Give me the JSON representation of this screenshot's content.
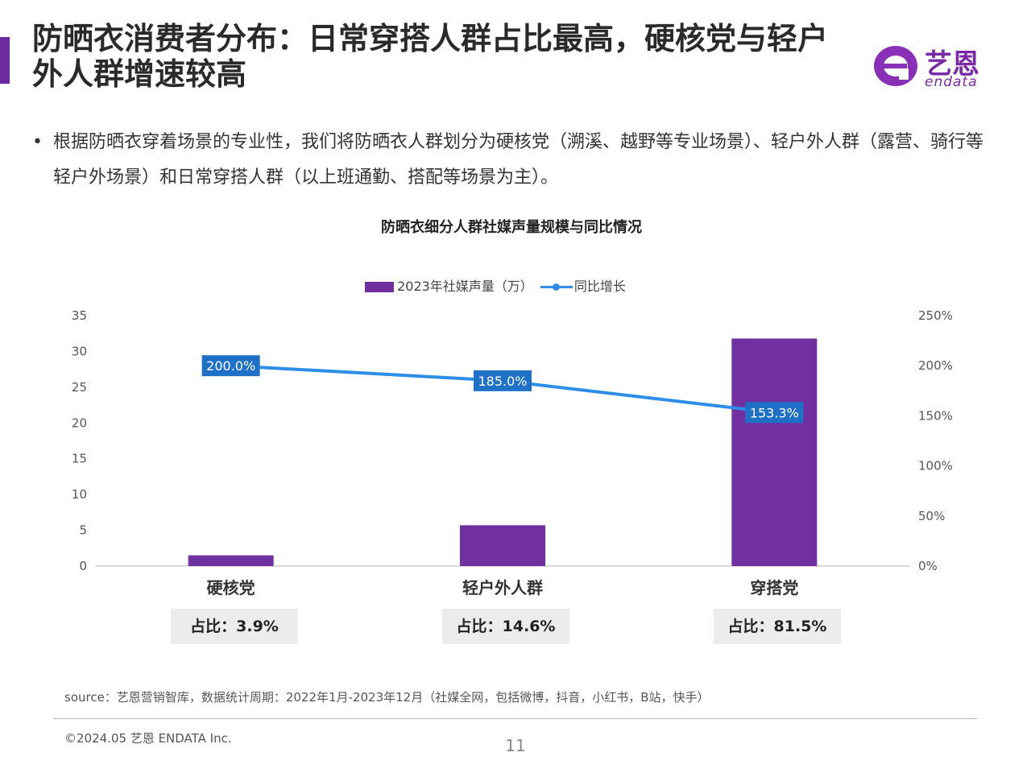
{
  "header": {
    "title": "防晒衣消费者分布：日常穿搭人群占比最高，硬核党与轻户外人群增速较高",
    "logo_cn": "艺恩",
    "logo_en": "endata",
    "accent_color": "#6b2aa0"
  },
  "body": {
    "bullet_symbol": "•",
    "bullet_text": "根据防晒衣穿着场景的专业性，我们将防晒衣人群划分为硬核党（溯溪、越野等专业场景）、轻户外人群（露营、骑行等轻户外场景）和日常穿搭人群（以上班通勤、搭配等场景为主）。"
  },
  "chart_data": {
    "type": "bar",
    "title": "防晒衣细分人群社媒声量规模与同比情况",
    "categories": [
      "硬核党",
      "轻户外人群",
      "穿搭党"
    ],
    "series": [
      {
        "name": "2023年社媒声量（万）",
        "type": "bar",
        "axis": "left",
        "color": "#7030a0",
        "values": [
          1.5,
          5.7,
          31.8
        ]
      },
      {
        "name": "同比增长",
        "type": "line",
        "axis": "right",
        "color": "#2e8de6",
        "values": [
          200.0,
          185.0,
          153.3
        ]
      }
    ],
    "data_labels": [
      "200.0%",
      "185.0%",
      "153.3%"
    ],
    "ylim": [
      0,
      35
    ],
    "y_ticks": [
      "0",
      "5",
      "10",
      "15",
      "20",
      "25",
      "30",
      "35"
    ],
    "y2lim": [
      0,
      250
    ],
    "y2_ticks": [
      "0%",
      "50%",
      "100%",
      "150%",
      "200%",
      "250%"
    ],
    "legend_position": "top",
    "grid": false
  },
  "ratios": [
    "占比：3.9%",
    "占比：14.6%",
    "占比：81.5%"
  ],
  "footer": {
    "source": "source：艺恩营销智库，数据统计周期：2022年1月-2023年12月（社媒全网，包括微博，抖音，小红书，B站，快手）",
    "copyright": "©2024.05 艺恩 ENDATA Inc.",
    "page_number": "11"
  }
}
